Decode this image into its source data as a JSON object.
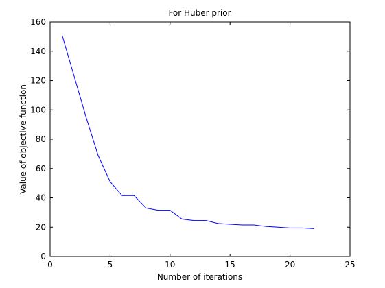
{
  "chart_data": {
    "type": "line",
    "title": "For Huber prior",
    "xlabel": "Number of iterations",
    "ylabel": "Value of objective function",
    "xlim": [
      0,
      25
    ],
    "ylim": [
      0,
      160
    ],
    "xticks": [
      0,
      5,
      10,
      15,
      20,
      25
    ],
    "yticks": [
      0,
      20,
      40,
      60,
      80,
      100,
      120,
      140,
      160
    ],
    "grid": false,
    "legend": "none",
    "series": [
      {
        "color": "#0000ff",
        "x": [
          1,
          2,
          3,
          4,
          5,
          6,
          7,
          8,
          9,
          10,
          11,
          12,
          13,
          14,
          15,
          16,
          17,
          18,
          19,
          20,
          21,
          22
        ],
        "y": [
          151,
          123,
          95,
          69,
          51,
          41.5,
          41.5,
          33,
          31.5,
          31.5,
          25.5,
          24.5,
          24.5,
          22.5,
          22,
          21.5,
          21.5,
          20.5,
          20,
          19.5,
          19.5,
          19
        ]
      }
    ]
  }
}
